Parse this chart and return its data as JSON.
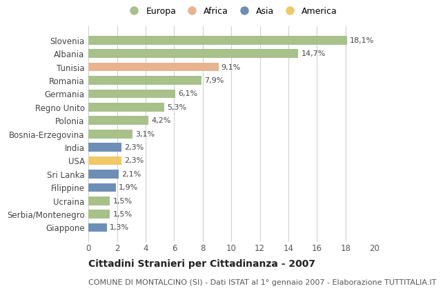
{
  "countries": [
    "Slovenia",
    "Albania",
    "Tunisia",
    "Romania",
    "Germania",
    "Regno Unito",
    "Polonia",
    "Bosnia-Erzegovina",
    "India",
    "USA",
    "Sri Lanka",
    "Filippine",
    "Ucraina",
    "Serbia/Montenegro",
    "Giappone"
  ],
  "values": [
    18.1,
    14.7,
    9.1,
    7.9,
    6.1,
    5.3,
    4.2,
    3.1,
    2.3,
    2.3,
    2.1,
    1.9,
    1.5,
    1.5,
    1.3
  ],
  "labels": [
    "18,1%",
    "14,7%",
    "9,1%",
    "7,9%",
    "6,1%",
    "5,3%",
    "4,2%",
    "3,1%",
    "2,3%",
    "2,3%",
    "2,1%",
    "1,9%",
    "1,5%",
    "1,5%",
    "1,3%"
  ],
  "categories": [
    "Europa",
    "Europa",
    "Africa",
    "Europa",
    "Europa",
    "Europa",
    "Europa",
    "Europa",
    "Asia",
    "America",
    "Asia",
    "Asia",
    "Europa",
    "Europa",
    "Asia"
  ],
  "colors": {
    "Europa": "#a8c08a",
    "Africa": "#e8b490",
    "Asia": "#6e8fb5",
    "America": "#f0c868"
  },
  "legend_order": [
    "Europa",
    "Africa",
    "Asia",
    "America"
  ],
  "xlim": [
    0,
    20
  ],
  "xticks": [
    0,
    2,
    4,
    6,
    8,
    10,
    12,
    14,
    16,
    18,
    20
  ],
  "title": "Cittadini Stranieri per Cittadinanza - 2007",
  "subtitle": "COMUNE DI MONTALCINO (SI) - Dati ISTAT al 1° gennaio 2007 - Elaborazione TUTTITALIA.IT",
  "background_color": "#ffffff",
  "grid_color": "#d0d0d0",
  "bar_height": 0.65,
  "label_fontsize": 8.0,
  "ytick_fontsize": 8.5,
  "xtick_fontsize": 8.5,
  "title_fontsize": 10,
  "subtitle_fontsize": 8,
  "legend_fontsize": 9
}
